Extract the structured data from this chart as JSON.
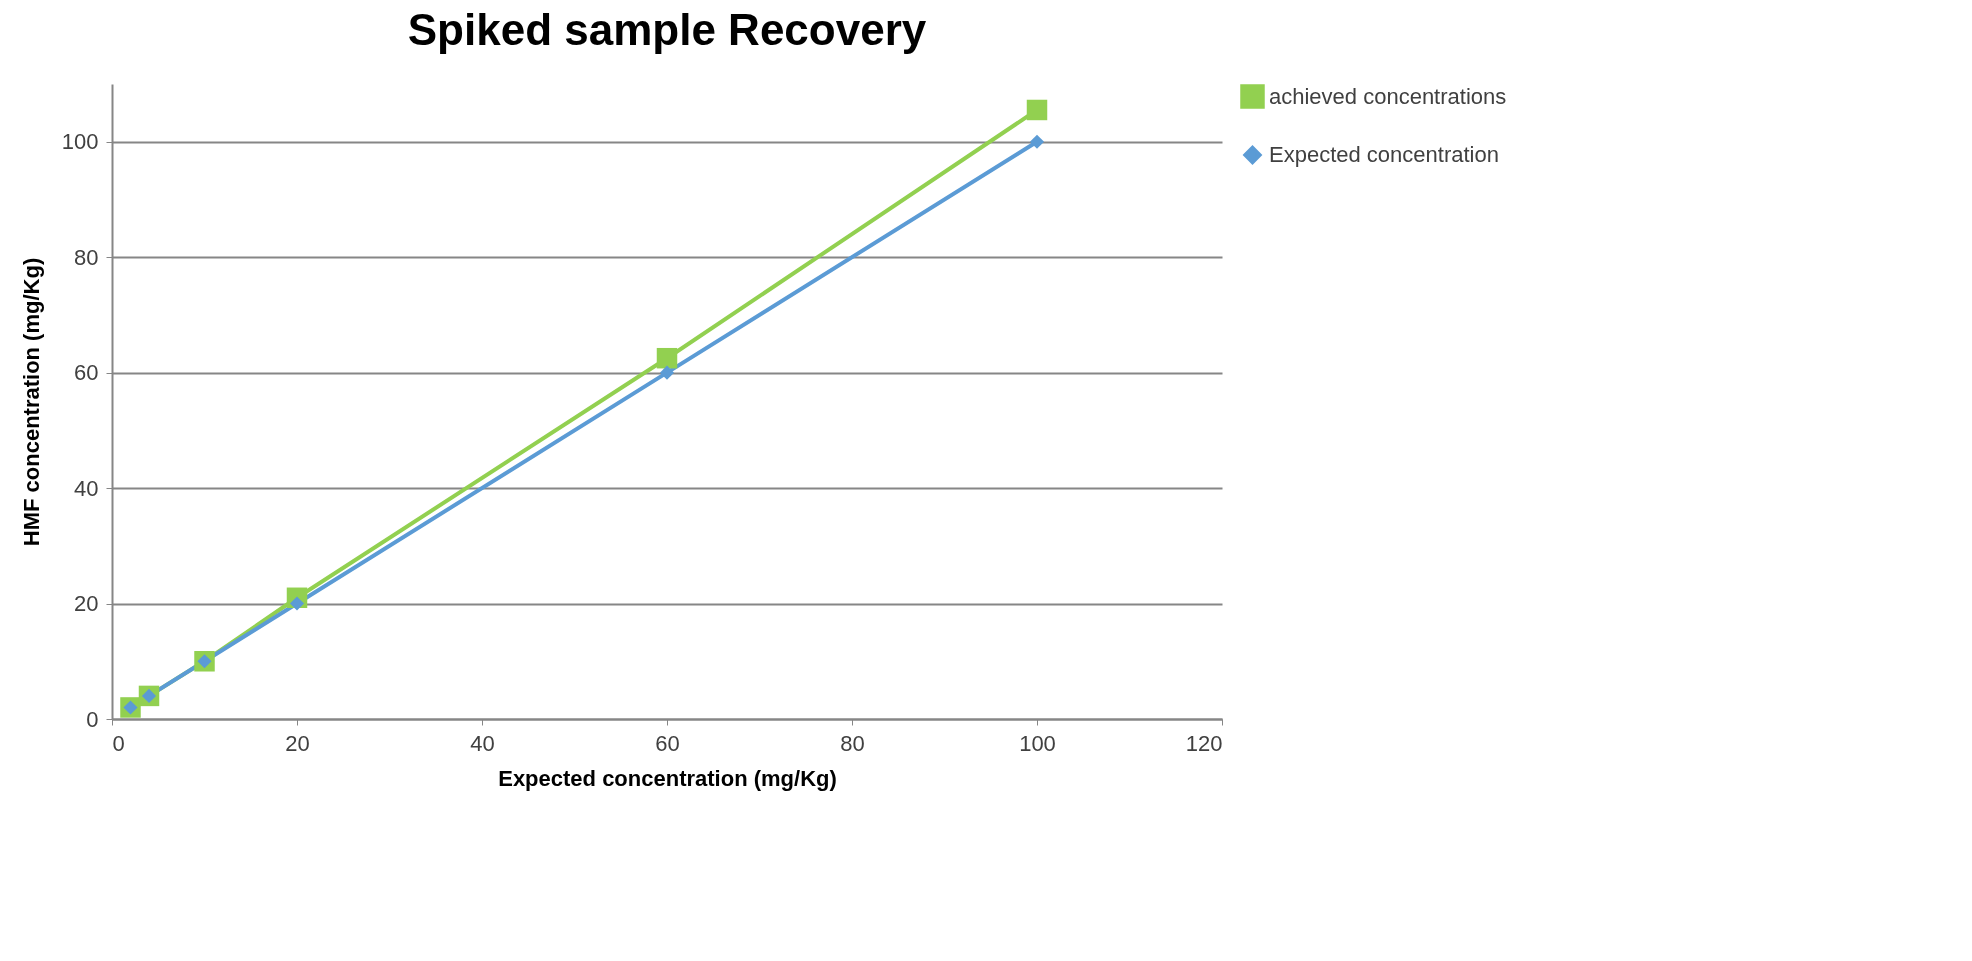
{
  "chart_data": {
    "type": "line",
    "title": "Spiked sample Recovery",
    "xlabel": "Expected concentration (mg/Kg)",
    "ylabel": "HMF concentration  (mg/Kg)",
    "x": [
      2,
      4,
      10,
      20,
      60,
      100
    ],
    "series": [
      {
        "name": "achieved concentrations",
        "color": "#92d050",
        "marker": "square",
        "values": [
          2,
          4,
          10,
          21,
          62.5,
          105.5
        ]
      },
      {
        "name": "Expected concentration",
        "color": "#5b9bd5",
        "marker": "diamond",
        "values": [
          2,
          4,
          10,
          20,
          60,
          100
        ]
      }
    ],
    "xlim": [
      0,
      120
    ],
    "xticks": [
      0,
      20,
      40,
      60,
      80,
      100,
      120
    ],
    "ylim": [
      0,
      110
    ],
    "yticks": [
      0,
      20,
      40,
      60,
      80,
      100
    ],
    "grid": "y",
    "legend": "right",
    "line_style": "solid"
  }
}
